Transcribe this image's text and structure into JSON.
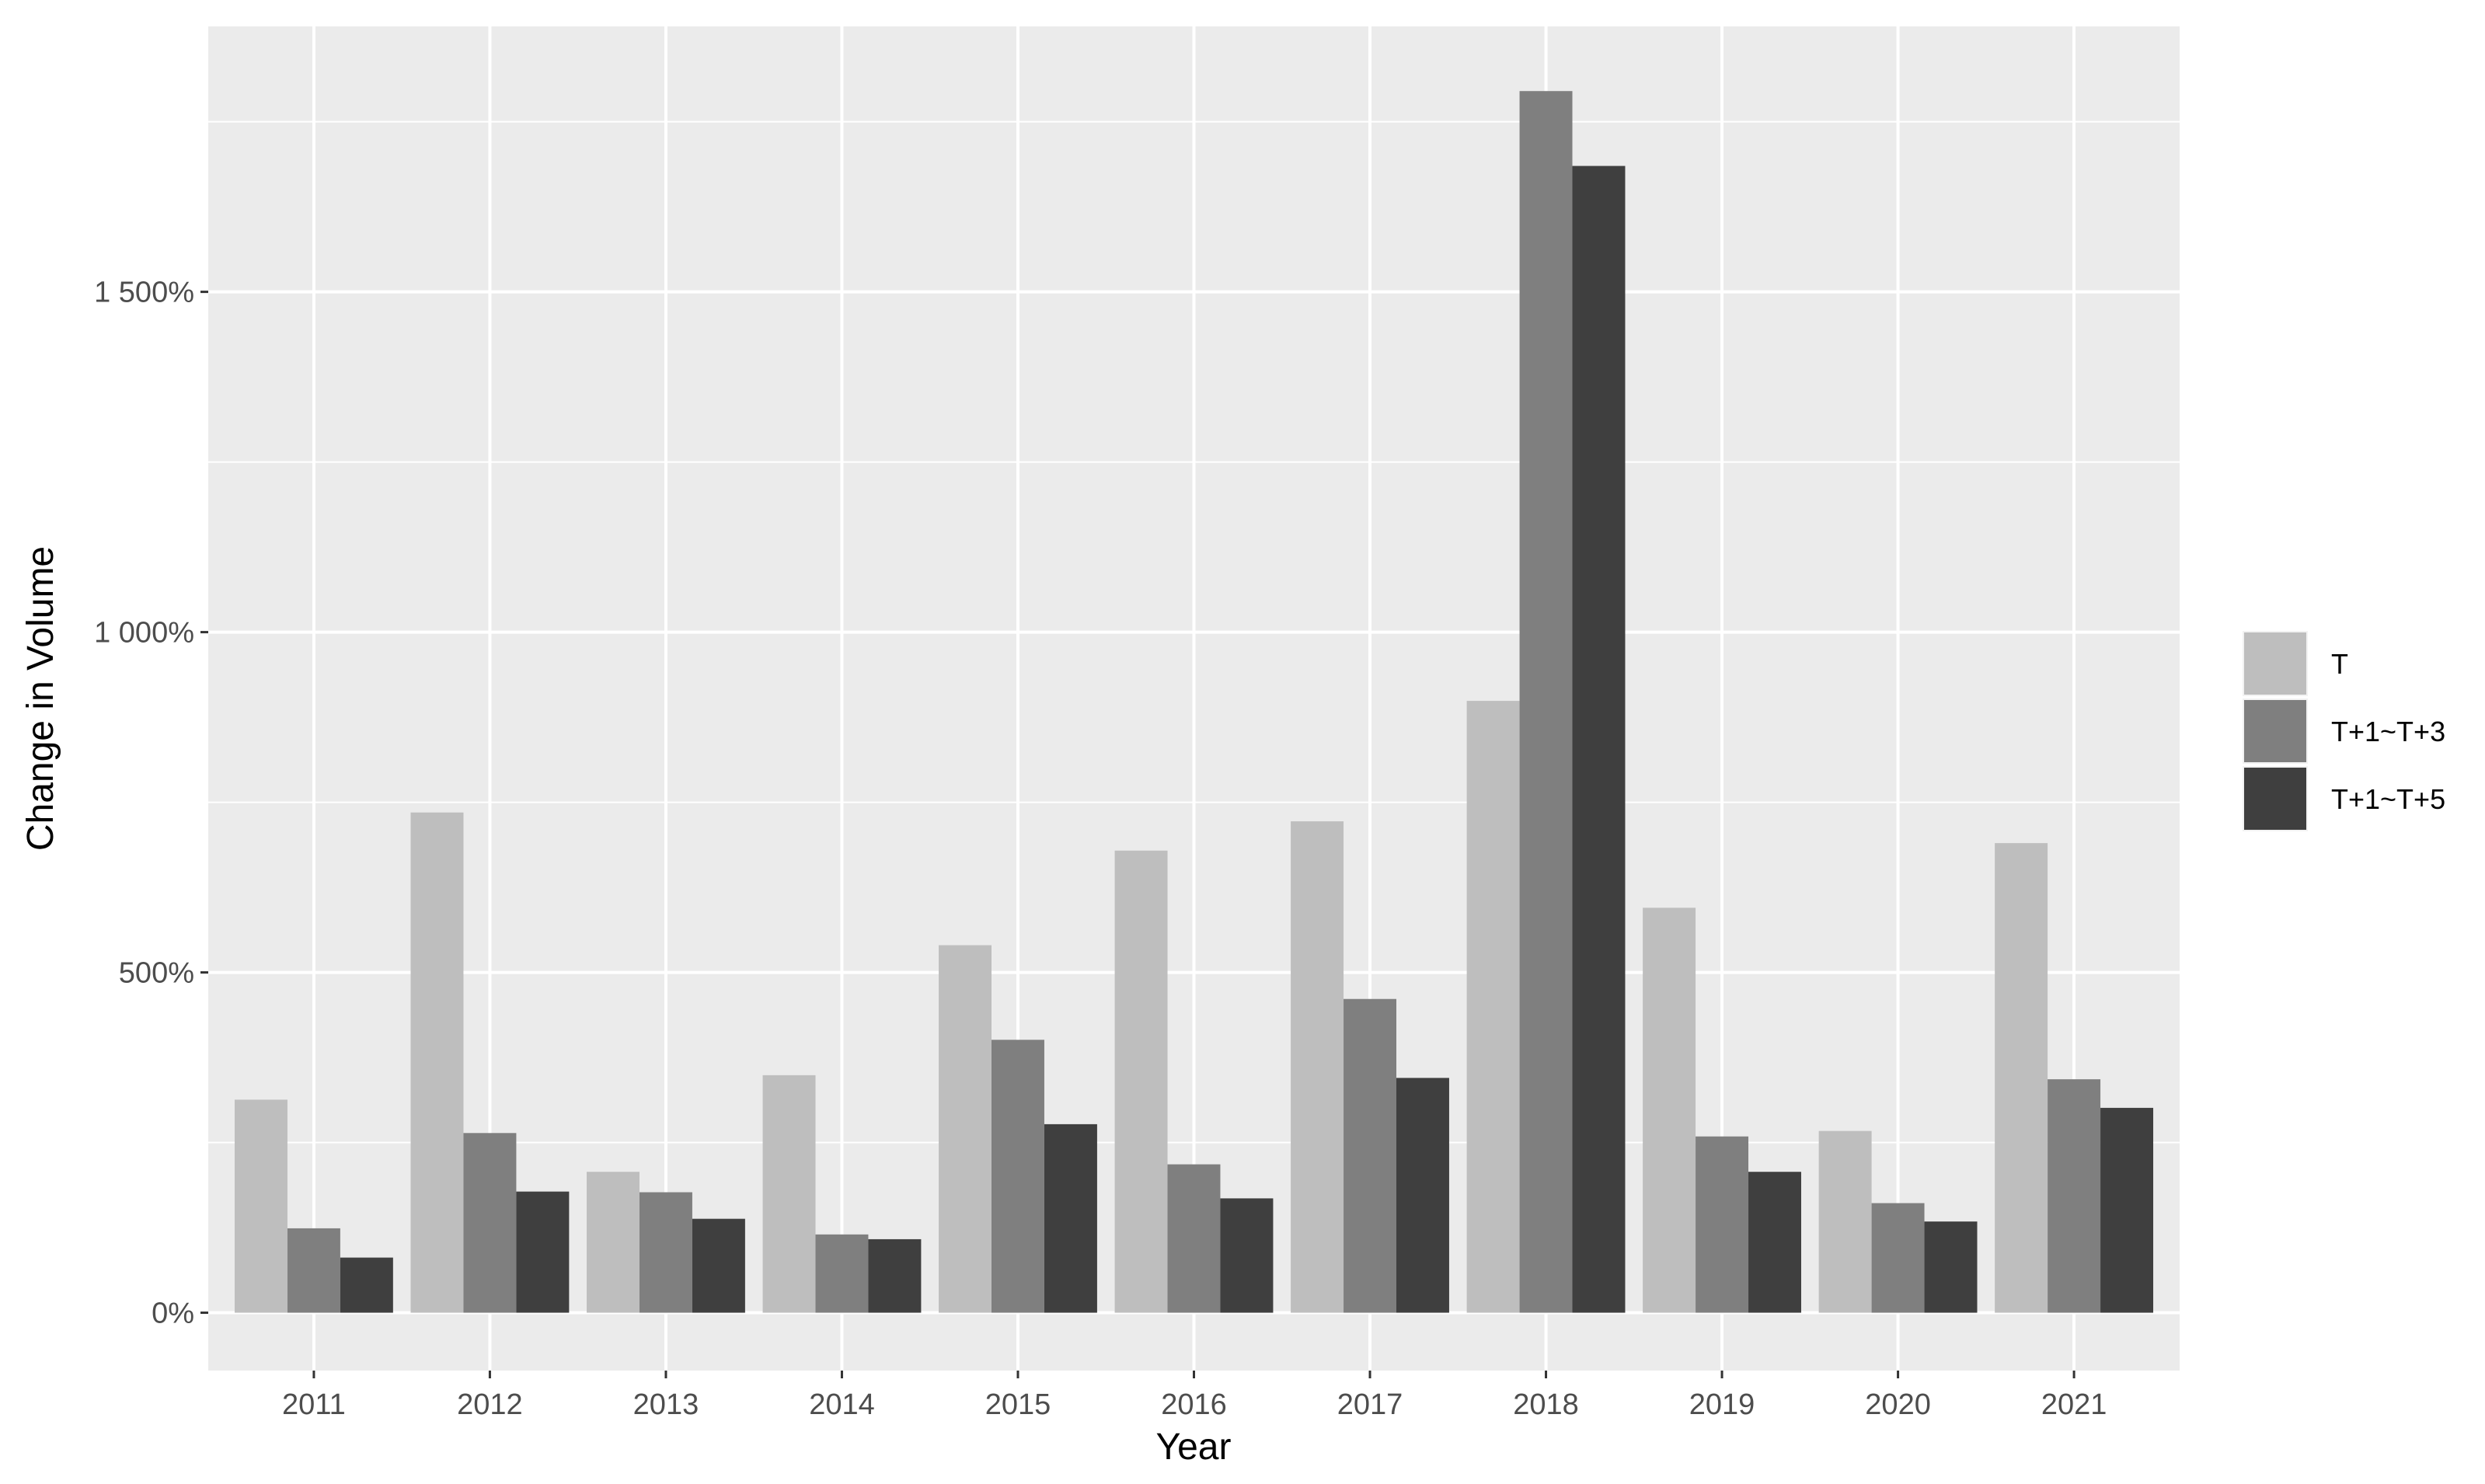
{
  "chart_data": {
    "type": "bar",
    "xlabel": "Year",
    "ylabel": "Change in Volume",
    "categories": [
      "2011",
      "2012",
      "2013",
      "2014",
      "2015",
      "2016",
      "2017",
      "2018",
      "2019",
      "2020",
      "2021"
    ],
    "series": [
      {
        "name": "T",
        "color": "#bebebe",
        "values": [
          313,
          735,
          207,
          349,
          540,
          679,
          722,
          899,
          595,
          267,
          690
        ]
      },
      {
        "name": "T+1~T+3",
        "color": "#7f7f7f",
        "values": [
          124,
          264,
          177,
          115,
          401,
          218,
          461,
          1795,
          259,
          161,
          343
        ]
      },
      {
        "name": "T+1~T+5",
        "color": "#3f3f3f",
        "values": [
          81,
          178,
          138,
          108,
          277,
          168,
          345,
          1685,
          207,
          134,
          301
        ]
      }
    ],
    "ylim": [
      -85,
      1890
    ],
    "yticks": [
      0,
      500,
      1000,
      1500
    ],
    "ytick_labels": [
      "0%",
      "500%",
      "1 000%",
      "1 500%"
    ],
    "grid": true,
    "legend_position": "right",
    "panel_background": "#ebebeb",
    "grid_color": "#ffffff"
  }
}
